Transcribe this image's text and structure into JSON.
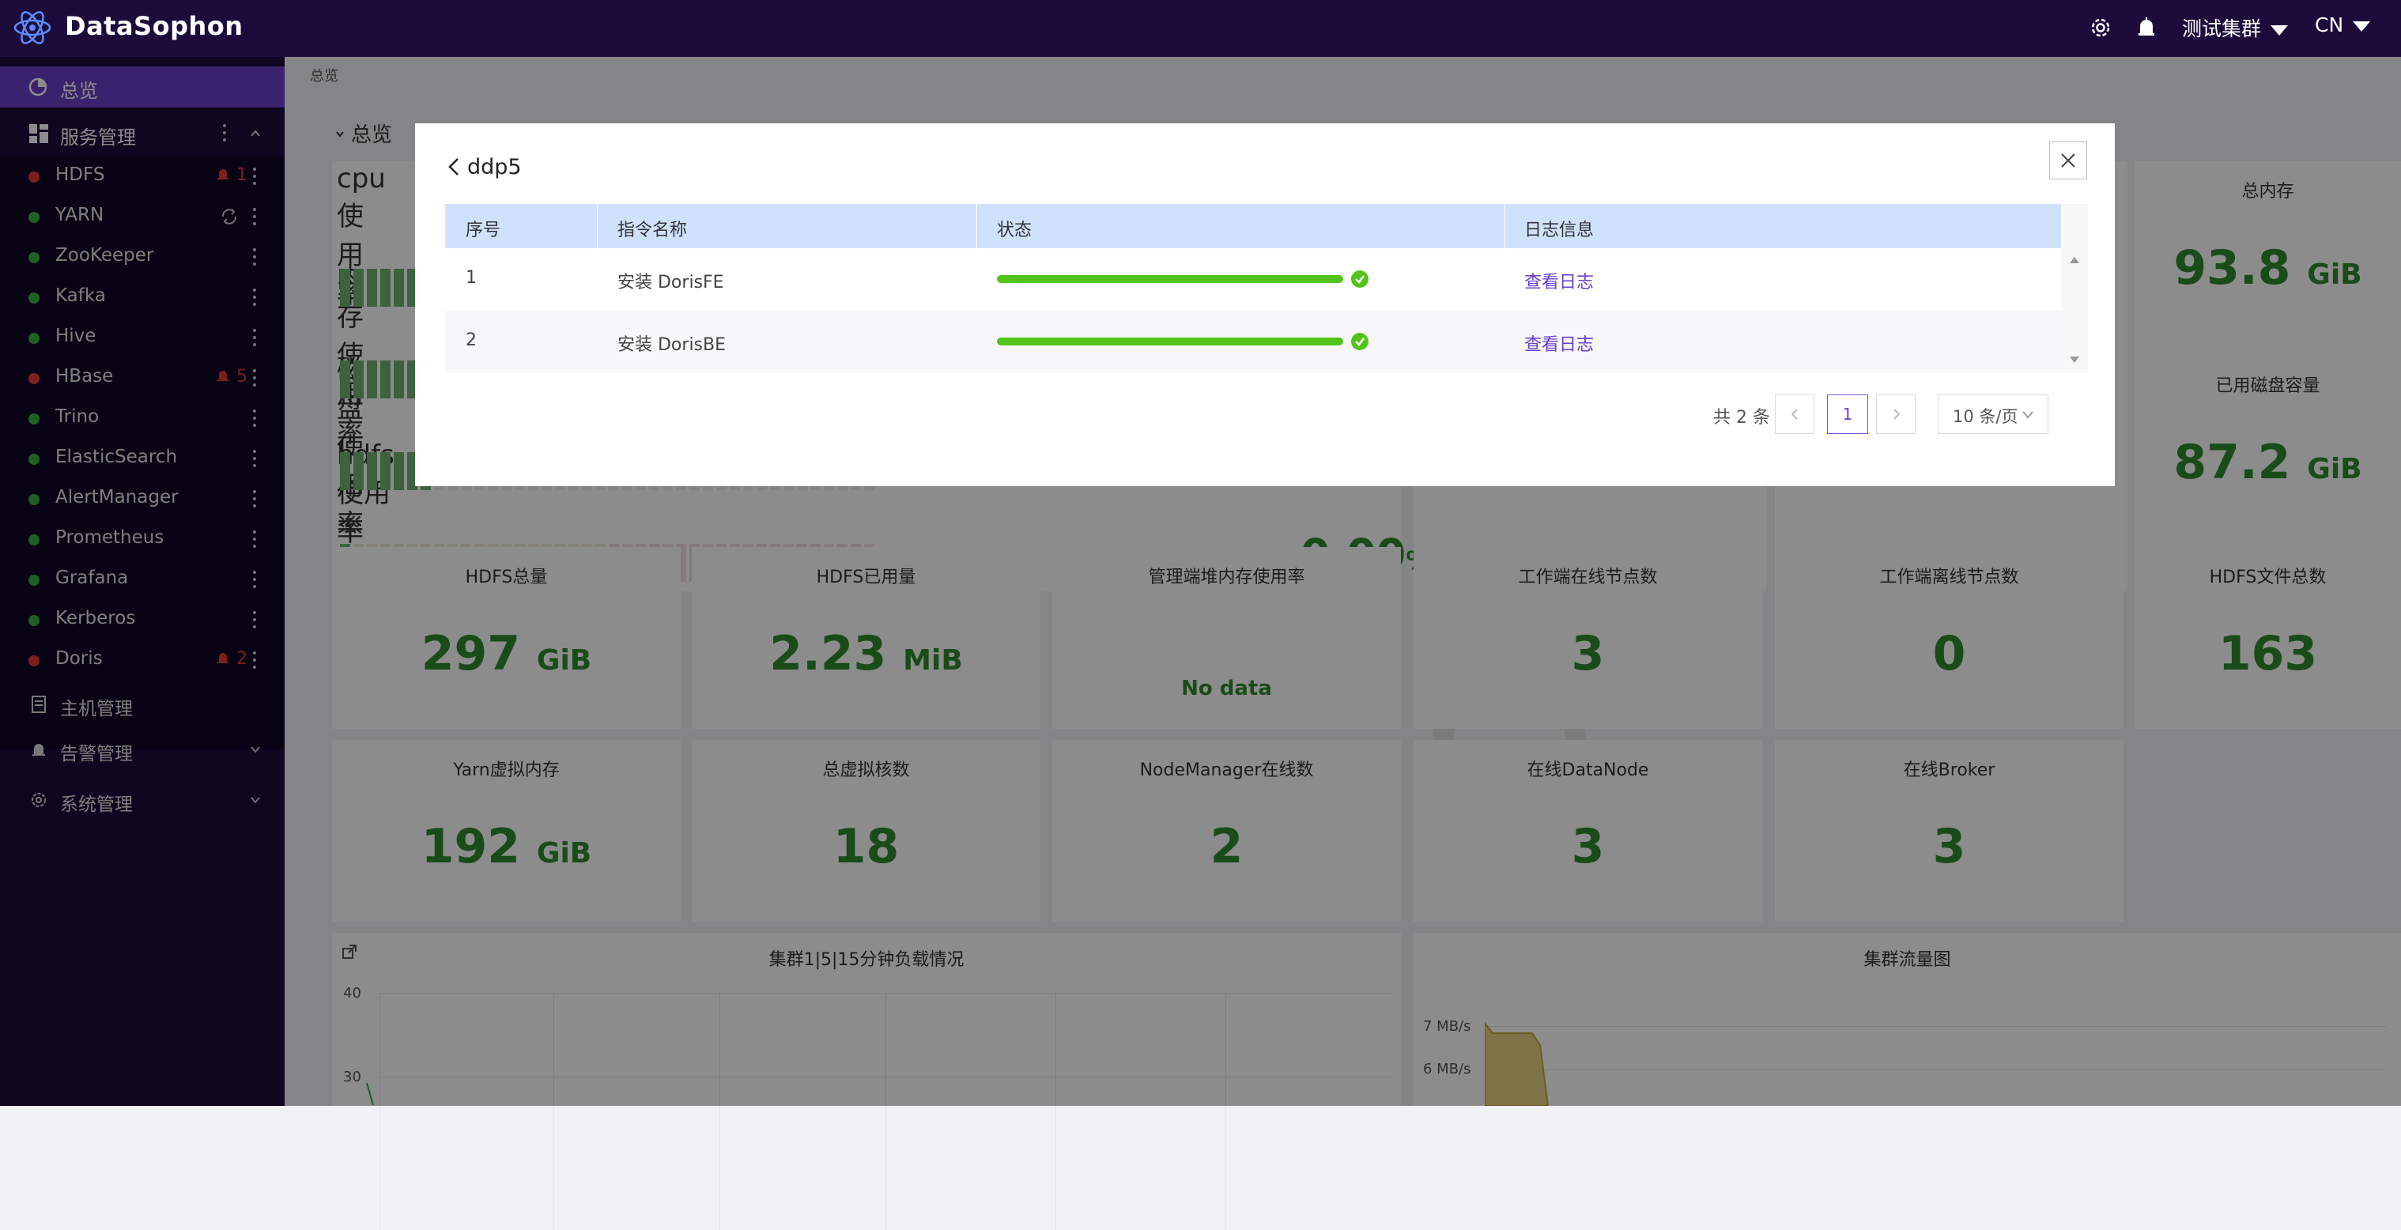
{
  "app": {
    "name": "DataSophon"
  },
  "header": {
    "cluster": "测试集群",
    "lang": "CN",
    "settings_icon": "gear-icon",
    "alarm_icon": "bell-icon"
  },
  "sidebar": {
    "overview": "总览",
    "services": "服务管理",
    "service_items": [
      {
        "name": "HDFS",
        "status": "error",
        "alarm": "1"
      },
      {
        "name": "YARN",
        "status": "ok",
        "alarm": ""
      },
      {
        "name": "ZooKeeper",
        "status": "ok",
        "alarm": ""
      },
      {
        "name": "Kafka",
        "status": "ok",
        "alarm": ""
      },
      {
        "name": "Hive",
        "status": "ok",
        "alarm": ""
      },
      {
        "name": "HBase",
        "status": "error",
        "alarm": "5"
      },
      {
        "name": "Trino",
        "status": "ok",
        "alarm": ""
      },
      {
        "name": "ElasticSearch",
        "status": "ok",
        "alarm": ""
      },
      {
        "name": "AlertManager",
        "status": "ok",
        "alarm": ""
      },
      {
        "name": "Prometheus",
        "status": "ok",
        "alarm": ""
      },
      {
        "name": "Grafana",
        "status": "ok",
        "alarm": ""
      },
      {
        "name": "Kerberos",
        "status": "ok",
        "alarm": ""
      },
      {
        "name": "Doris",
        "status": "error",
        "alarm": "2"
      }
    ],
    "host_mgmt": "主机管理",
    "alarm_mgmt": "告警管理",
    "system_mgmt": "系统管理",
    "colors": {
      "ok": "#3cb043",
      "error": "#e53935",
      "active_bg": "#6b3fc8"
    }
  },
  "main": {
    "breadcrumb": "总览",
    "section_title": "总览",
    "bar_rows": [
      "cpu使用率",
      "内存使用率",
      "磁盘使用率",
      "hdfs使用率"
    ],
    "hdfs_usage_value": "0.00",
    "hdfs_usage_unit": "%",
    "cards": {
      "total_memory": {
        "title": "总内存",
        "value": "93.8",
        "unit": "GiB"
      },
      "used_disk": {
        "title": "已用磁盘容量",
        "value": "87.2",
        "unit": "GiB"
      },
      "hdfs_total": {
        "title": "HDFS总量",
        "value": "297",
        "unit": "GiB"
      },
      "hdfs_used": {
        "title": "HDFS已用量",
        "value": "2.23",
        "unit": "MiB"
      },
      "heap_usage": {
        "title": "管理端堆内存使用率",
        "value": "No data"
      },
      "worker_online": {
        "title": "工作端在线节点数",
        "value": "3"
      },
      "worker_offline": {
        "title": "工作端离线节点数",
        "value": "0"
      },
      "hdfs_files": {
        "title": "HDFS文件总数",
        "value": "163"
      },
      "yarn_vmem": {
        "title": "Yarn虚拟内存",
        "value": "192",
        "unit": "GiB"
      },
      "vcores": {
        "title": "总虚拟核数",
        "value": "18"
      },
      "nodemanager": {
        "title": "NodeManager在线数",
        "value": "2"
      },
      "datanode": {
        "title": "在线DataNode",
        "value": "3"
      },
      "broker": {
        "title": "在线Broker",
        "value": "3"
      }
    },
    "load_chart": {
      "title": "集群1|5|15分钟负载情况",
      "y_ticks": [
        "40",
        "30"
      ]
    },
    "traffic_chart": {
      "title": "集群流量图",
      "y_ticks": [
        "7 MB/s",
        "6 MB/s"
      ]
    }
  },
  "modal": {
    "title": "ddp5",
    "columns": [
      "序号",
      "指令名称",
      "状态",
      "日志信息"
    ],
    "rows": [
      {
        "index": "1",
        "name": "安装 DorisFE",
        "progress": 1.0,
        "status": "success",
        "log": "查看日志"
      },
      {
        "index": "2",
        "name": "安装 DorisBE",
        "progress": 1.0,
        "status": "success",
        "log": "查看日志"
      }
    ],
    "pagination": {
      "total": "共 2 条",
      "current": "1",
      "page_size": "10 条/页"
    }
  }
}
